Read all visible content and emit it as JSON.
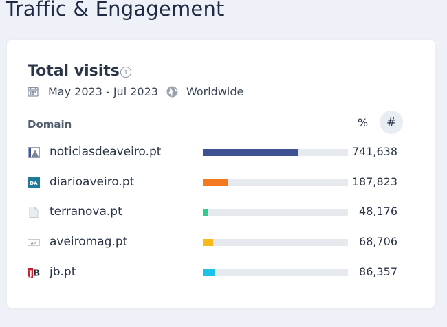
{
  "section_title": "Traffic & Engagement",
  "card": {
    "title": "Total visits",
    "date_range": "May 2023 - Jul 2023",
    "region": "Worldwide",
    "column_header": "Domain",
    "toggle_percent_label": "%",
    "toggle_number_label": "#"
  },
  "rows": [
    {
      "domain": "noticiasdeaveiro.pt",
      "value": "741,638",
      "share": 0.66,
      "color": "#3e5190",
      "icon": "noticias-favicon-icon"
    },
    {
      "domain": "diarioaveiro.pt",
      "value": "187,823",
      "share": 0.17,
      "color": "#f57a1f",
      "icon": "diario-favicon-icon"
    },
    {
      "domain": "terranova.pt",
      "value": "48,176",
      "share": 0.04,
      "color": "#2dcc8f",
      "icon": "generic-page-icon"
    },
    {
      "domain": "aveiromag.pt",
      "value": "68,706",
      "share": 0.07,
      "color": "#f9b81c",
      "icon": "aveiromag-favicon-icon"
    },
    {
      "domain": "jb.pt",
      "value": "86,357",
      "share": 0.08,
      "color": "#1ec1e8",
      "icon": "jb-favicon-icon"
    }
  ]
}
